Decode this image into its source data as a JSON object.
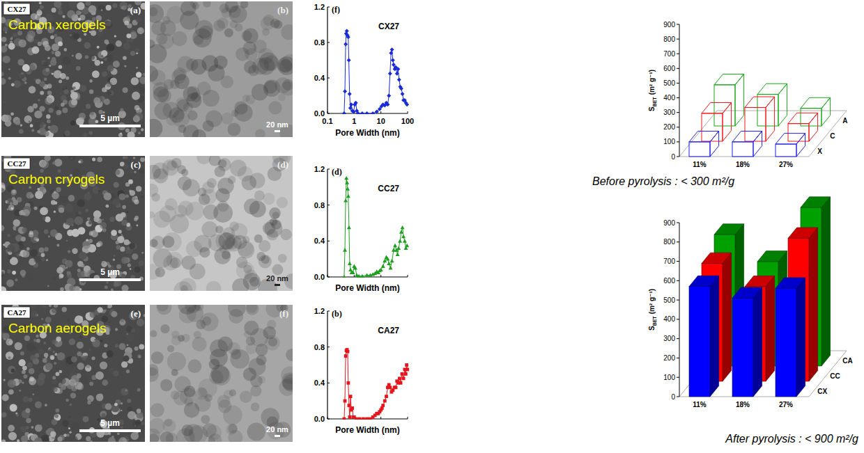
{
  "image_panels": [
    {
      "sample": "CX27",
      "sem_letter": "(a)",
      "material": "Carbon xerogels",
      "sem_scale": "5 µm",
      "tem_letter": "(b)",
      "tem_scale": "20 nm"
    },
    {
      "sample": "CC27",
      "sem_letter": "(c)",
      "material": "Carbon cryogels",
      "sem_scale": "5 µm",
      "tem_letter": "(d)",
      "tem_scale": "20 nm"
    },
    {
      "sample": "CA27",
      "sem_letter": "(e)",
      "material": "Carbon aerogels",
      "sem_scale": "5 µm",
      "tem_letter": "(f)",
      "tem_scale": "20 nm"
    }
  ],
  "chart_data": [
    {
      "type": "line",
      "title": "CX27",
      "panel_label": "(f)",
      "xlabel": "Pore Width (nm)",
      "log": "x",
      "xlim": [
        0.1,
        100
      ],
      "xticks": [
        0.1,
        1,
        10,
        100
      ],
      "ylim": [
        0,
        1.2
      ],
      "yticks": [
        {
          "value": 0,
          "label": "0.0"
        },
        0.4,
        0.8,
        1.2
      ],
      "color": "#1a2bd6",
      "marker": "diamond",
      "x": [
        0.42,
        0.45,
        0.48,
        0.5,
        0.53,
        0.56,
        0.6,
        0.63,
        0.67,
        0.72,
        0.78,
        0.85,
        0.95,
        1.05,
        1.15,
        1.25,
        1.4,
        2,
        3,
        5,
        7,
        9,
        10.5,
        12,
        14,
        16,
        18,
        20,
        22,
        24,
        26,
        28,
        30,
        33,
        36,
        40,
        44,
        48,
        53,
        58,
        64,
        70,
        78,
        86,
        95
      ],
      "values": [
        0,
        0.25,
        0.78,
        0.9,
        0.93,
        0.88,
        0.86,
        0.6,
        0.22,
        0.06,
        0.1,
        0.03,
        0.02,
        0.1,
        0.12,
        0.03,
        0,
        0,
        0,
        0,
        0.02,
        0.05,
        0.08,
        0.1,
        0.09,
        0.12,
        0.1,
        0.2,
        0.45,
        0.68,
        0.72,
        0.6,
        0.55,
        0.5,
        0.52,
        0.45,
        0.5,
        0.38,
        0.3,
        0.28,
        0.22,
        0.15,
        0.15,
        0.12,
        0.1
      ]
    },
    {
      "type": "line",
      "title": "CC27",
      "panel_label": "(d)",
      "xlabel": "Pore Width (nm)",
      "log": "x",
      "tick_labels": "y",
      "xlim": [
        0.1,
        100
      ],
      "xticks": [
        0.1,
        1,
        10,
        100
      ],
      "ylim": [
        0,
        1.2
      ],
      "yticks": [
        {
          "value": 0,
          "label": "0.0"
        },
        0.4,
        0.8,
        1.2
      ],
      "color": "#1e9e1e",
      "marker": "triangle",
      "x": [
        0.42,
        0.45,
        0.48,
        0.51,
        0.54,
        0.57,
        0.6,
        0.64,
        0.68,
        0.73,
        0.8,
        0.9,
        1.0,
        1.1,
        1.25,
        1.5,
        2,
        3,
        4,
        5,
        6,
        7,
        8,
        9,
        10,
        12,
        14,
        16,
        18,
        20,
        23,
        26,
        30,
        34,
        38,
        42,
        46,
        52,
        58,
        64,
        70,
        78,
        86,
        95
      ],
      "values": [
        0,
        0.3,
        0.85,
        1.1,
        1.05,
        0.98,
        0.9,
        0.55,
        0.15,
        0.08,
        0.05,
        0.05,
        0.12,
        0.1,
        0.02,
        0.01,
        0.01,
        0.02,
        0.02,
        0.03,
        0.04,
        0.06,
        0.05,
        0.07,
        0.08,
        0.12,
        0.18,
        0.22,
        0.2,
        0.15,
        0.1,
        0.18,
        0.3,
        0.35,
        0.3,
        0.25,
        0.32,
        0.4,
        0.5,
        0.55,
        0.45,
        0.4,
        0.32,
        0.35
      ]
    },
    {
      "type": "line",
      "title": "CA27",
      "panel_label": "(b)",
      "xlabel": "Pore Width (nm)",
      "log": "x",
      "tick_labels": "y",
      "xlim": [
        0.1,
        100
      ],
      "xticks": [
        0.1,
        1,
        10,
        100
      ],
      "ylim": [
        0,
        1.2
      ],
      "yticks": [
        {
          "value": 0,
          "label": "0.0"
        },
        0.4,
        0.8,
        1.2
      ],
      "color": "#e3161e",
      "marker": "square",
      "x": [
        0.42,
        0.45,
        0.48,
        0.51,
        0.54,
        0.57,
        0.6,
        0.64,
        0.68,
        0.73,
        0.78,
        0.85,
        0.92,
        1.0,
        1.2,
        1.6,
        2.2,
        3,
        4,
        5,
        6,
        7,
        8,
        9,
        10,
        11,
        12,
        14,
        16,
        18,
        20,
        22,
        25,
        28,
        32,
        36,
        40,
        45,
        50,
        55,
        62,
        70,
        78,
        85,
        92,
        98
      ],
      "values": [
        0,
        0.2,
        0.7,
        0.76,
        0.77,
        0.75,
        0.4,
        0.15,
        0.02,
        0.25,
        0.1,
        0.12,
        0.02,
        0.02,
        0,
        0,
        0,
        0,
        0,
        0.02,
        0.04,
        0.06,
        0.06,
        0.08,
        0.1,
        0.12,
        0.15,
        0.2,
        0.25,
        0.35,
        0.38,
        0.35,
        0.3,
        0.32,
        0.35,
        0.35,
        0.42,
        0.4,
        0.45,
        0.4,
        0.5,
        0.45,
        0.55,
        0.5,
        0.6,
        0.55
      ]
    },
    {
      "type": "bar",
      "line_style": "outline",
      "caption": "Before pyrolysis : < 300 m²/g",
      "ylabel": "S",
      "ylabel_sub": "BET",
      "ylabel_unit": "(m² g⁻¹)",
      "categories": [
        "11%",
        "18%",
        "27%"
      ],
      "ylim": [
        0,
        900
      ],
      "yticks": [
        0,
        100,
        200,
        300,
        400,
        500,
        600,
        700,
        800,
        900
      ],
      "series": [
        {
          "name": "X",
          "color": "#2020e8",
          "values": [
            100,
            100,
            85
          ]
        },
        {
          "name": "C",
          "color": "#f01818",
          "values": [
            190,
            230,
            120
          ]
        },
        {
          "name": "A",
          "color": "#18a818",
          "values": [
            280,
            215,
            120
          ]
        }
      ]
    },
    {
      "type": "bar",
      "caption": "After pyrolysis : < 900 m²/g",
      "ylabel": "S",
      "ylabel_sub": "BET",
      "ylabel_unit": "(m² g⁻¹)",
      "categories": [
        "11%",
        "18%",
        "27%"
      ],
      "ylim": [
        0,
        900
      ],
      "yticks": [
        0,
        100,
        200,
        300,
        400,
        500,
        600,
        700,
        800,
        900
      ],
      "series": [
        {
          "name": "CX",
          "color": "#0000ff",
          "values": [
            570,
            510,
            560
          ]
        },
        {
          "name": "CC",
          "color": "#ff0000",
          "values": [
            610,
            490,
            740
          ]
        },
        {
          "name": "CA",
          "color": "#00a000",
          "values": [
            680,
            540,
            820
          ]
        }
      ]
    }
  ]
}
